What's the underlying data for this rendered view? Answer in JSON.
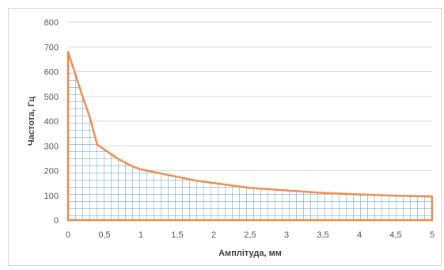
{
  "chart_data": {
    "type": "area",
    "title": "",
    "xlabel": "Амплітуда, мм",
    "ylabel": "Частота, Гц",
    "xlim": [
      0,
      5
    ],
    "ylim": [
      0,
      800
    ],
    "x_ticks": [
      "0",
      "0,5",
      "1",
      "1,5",
      "2",
      "2,5",
      "3",
      "3,5",
      "4",
      "4,5",
      "5"
    ],
    "y_ticks": [
      "0",
      "100",
      "200",
      "300",
      "400",
      "500",
      "600",
      "700",
      "800"
    ],
    "grid": true,
    "legend": "none",
    "colors": {
      "fill_hatch": "#5b9bd5",
      "outline": "#ed7d31",
      "gridline": "#d9d9d9"
    },
    "series": [
      {
        "x": [
          0,
          0.1,
          0.2,
          0.3,
          0.35,
          0.4,
          0.5,
          0.6,
          0.7,
          0.8,
          0.9,
          1.0,
          1.25,
          1.5,
          1.75,
          2.0,
          2.25,
          2.5,
          2.75,
          3.0,
          3.25,
          3.5,
          3.75,
          4.0,
          4.25,
          4.5,
          4.75,
          5.0
        ],
        "y": [
          680,
          590,
          500,
          415,
          360,
          305,
          285,
          265,
          245,
          230,
          215,
          205,
          190,
          175,
          160,
          150,
          140,
          130,
          125,
          120,
          115,
          110,
          107,
          104,
          101,
          99,
          97,
          95
        ]
      }
    ]
  }
}
